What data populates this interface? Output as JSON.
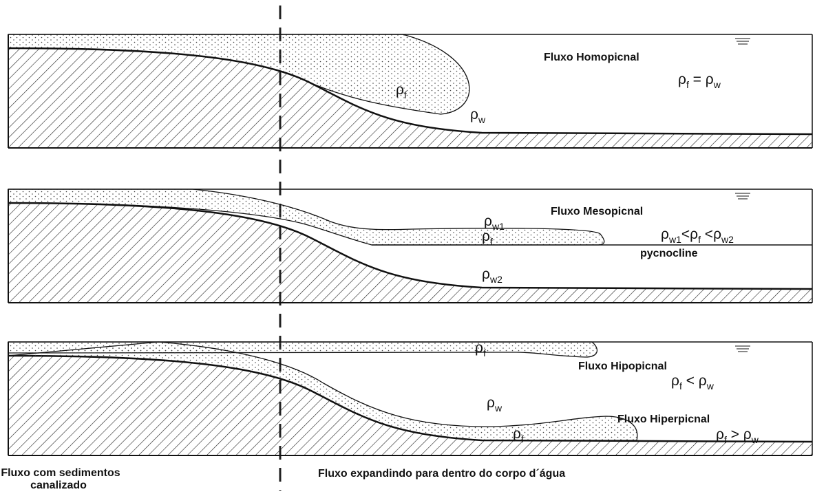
{
  "panels": [
    {
      "titles": [
        "Fluxo Homopicnal"
      ],
      "labels": [
        [
          {
            "t": "ρ"
          },
          {
            "s": "f"
          },
          {
            "t": " = ρ"
          },
          {
            "s": "w"
          }
        ],
        [
          {
            "t": "ρ"
          },
          {
            "s": "f"
          }
        ],
        [
          {
            "t": "ρ"
          },
          {
            "s": "w"
          }
        ]
      ]
    },
    {
      "titles": [
        "Fluxo Mesopicnal"
      ],
      "labels": [
        [
          {
            "t": "ρ"
          },
          {
            "s": "w1"
          }
        ],
        [
          {
            "t": "ρ"
          },
          {
            "s": "f"
          }
        ],
        [
          {
            "t": "ρ"
          },
          {
            "s": "w1"
          },
          {
            "t": "<ρ"
          },
          {
            "s": "f"
          },
          {
            "t": " <ρ"
          },
          {
            "s": "w2"
          }
        ],
        [
          {
            "t": "pycnocline"
          }
        ],
        [
          {
            "t": "ρ"
          },
          {
            "s": "w2"
          }
        ]
      ]
    },
    {
      "titles": [
        "Fluxo Hipopicnal",
        "Fluxo Hiperpicnal"
      ],
      "labels": [
        [
          {
            "t": "ρ"
          },
          {
            "s": "f"
          }
        ],
        [
          {
            "t": "ρ"
          },
          {
            "s": "f"
          },
          {
            "t": " < ρ"
          },
          {
            "s": "w"
          }
        ],
        [
          {
            "t": "ρ"
          },
          {
            "s": "w"
          }
        ],
        [
          {
            "t": "ρ"
          },
          {
            "s": "f"
          }
        ],
        [
          {
            "t": "ρ"
          },
          {
            "s": "f"
          },
          {
            "t": " > ρ"
          },
          {
            "s": "w"
          }
        ]
      ]
    }
  ],
  "footer": {
    "left": [
      "Fluxo com sedimentos",
      "canalizado"
    ],
    "right": "Fluxo expandindo para dentro do corpo d´água"
  }
}
